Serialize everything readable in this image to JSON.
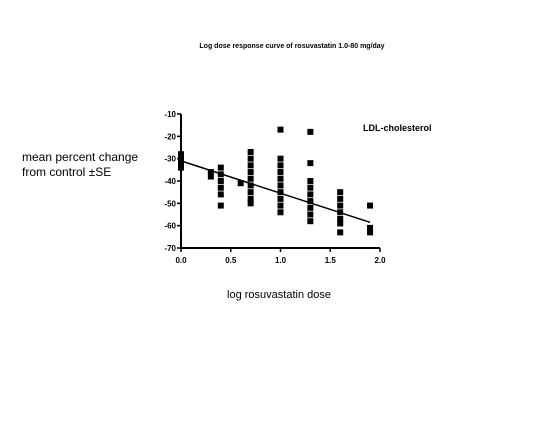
{
  "chart_data": {
    "type": "scatter",
    "title": "Log dose response curve of rosuvastatin 1.0-80 mg/day",
    "xlabel": "log rosuvastatin dose",
    "ylabel_lines": [
      "mean percent change",
      "from control ±SE"
    ],
    "annotation": "LDL-cholesterol",
    "xlim": [
      0.0,
      2.0
    ],
    "ylim": [
      -70,
      -10
    ],
    "x_ticks": [
      0.0,
      0.5,
      1.0,
      1.5,
      2.0
    ],
    "x_tick_labels": [
      "0.0",
      "0.5",
      "1.0",
      "1.5",
      "2.0"
    ],
    "y_ticks": [
      -10,
      -20,
      -30,
      -40,
      -50,
      -60,
      -70
    ],
    "y_tick_labels": [
      "-10",
      "-20",
      "-30",
      "-40",
      "-50",
      "-60",
      "-70"
    ],
    "grid": false,
    "series": [
      {
        "marker": "square",
        "color": "#000000",
        "points": [
          {
            "x": 0.0,
            "y": -28
          },
          {
            "x": 0.0,
            "y": -30
          },
          {
            "x": 0.0,
            "y": -32
          },
          {
            "x": 0.0,
            "y": -34
          },
          {
            "x": 0.3,
            "y": -36
          },
          {
            "x": 0.3,
            "y": -38
          },
          {
            "x": 0.4,
            "y": -34
          },
          {
            "x": 0.4,
            "y": -37
          },
          {
            "x": 0.4,
            "y": -40
          },
          {
            "x": 0.4,
            "y": -43
          },
          {
            "x": 0.4,
            "y": -46
          },
          {
            "x": 0.4,
            "y": -51
          },
          {
            "x": 0.6,
            "y": -41
          },
          {
            "x": 0.7,
            "y": -27
          },
          {
            "x": 0.7,
            "y": -30
          },
          {
            "x": 0.7,
            "y": -33
          },
          {
            "x": 0.7,
            "y": -36
          },
          {
            "x": 0.7,
            "y": -39
          },
          {
            "x": 0.7,
            "y": -42
          },
          {
            "x": 0.7,
            "y": -45
          },
          {
            "x": 0.7,
            "y": -48
          },
          {
            "x": 0.7,
            "y": -50
          },
          {
            "x": 1.0,
            "y": -17
          },
          {
            "x": 1.0,
            "y": -30
          },
          {
            "x": 1.0,
            "y": -33
          },
          {
            "x": 1.0,
            "y": -36
          },
          {
            "x": 1.0,
            "y": -39
          },
          {
            "x": 1.0,
            "y": -42
          },
          {
            "x": 1.0,
            "y": -45
          },
          {
            "x": 1.0,
            "y": -48
          },
          {
            "x": 1.0,
            "y": -51
          },
          {
            "x": 1.0,
            "y": -54
          },
          {
            "x": 1.3,
            "y": -18
          },
          {
            "x": 1.3,
            "y": -32
          },
          {
            "x": 1.3,
            "y": -40
          },
          {
            "x": 1.3,
            "y": -43
          },
          {
            "x": 1.3,
            "y": -46
          },
          {
            "x": 1.3,
            "y": -49
          },
          {
            "x": 1.3,
            "y": -52
          },
          {
            "x": 1.3,
            "y": -55
          },
          {
            "x": 1.3,
            "y": -58
          },
          {
            "x": 1.6,
            "y": -45
          },
          {
            "x": 1.6,
            "y": -48
          },
          {
            "x": 1.6,
            "y": -51
          },
          {
            "x": 1.6,
            "y": -54
          },
          {
            "x": 1.6,
            "y": -57
          },
          {
            "x": 1.6,
            "y": -59
          },
          {
            "x": 1.6,
            "y": -63
          },
          {
            "x": 1.9,
            "y": -51
          },
          {
            "x": 1.9,
            "y": -61
          },
          {
            "x": 1.9,
            "y": -63
          }
        ]
      }
    ],
    "fit_line": {
      "x": [
        0.0,
        1.9
      ],
      "y": [
        -31,
        -58.5
      ],
      "color": "#000000"
    }
  }
}
